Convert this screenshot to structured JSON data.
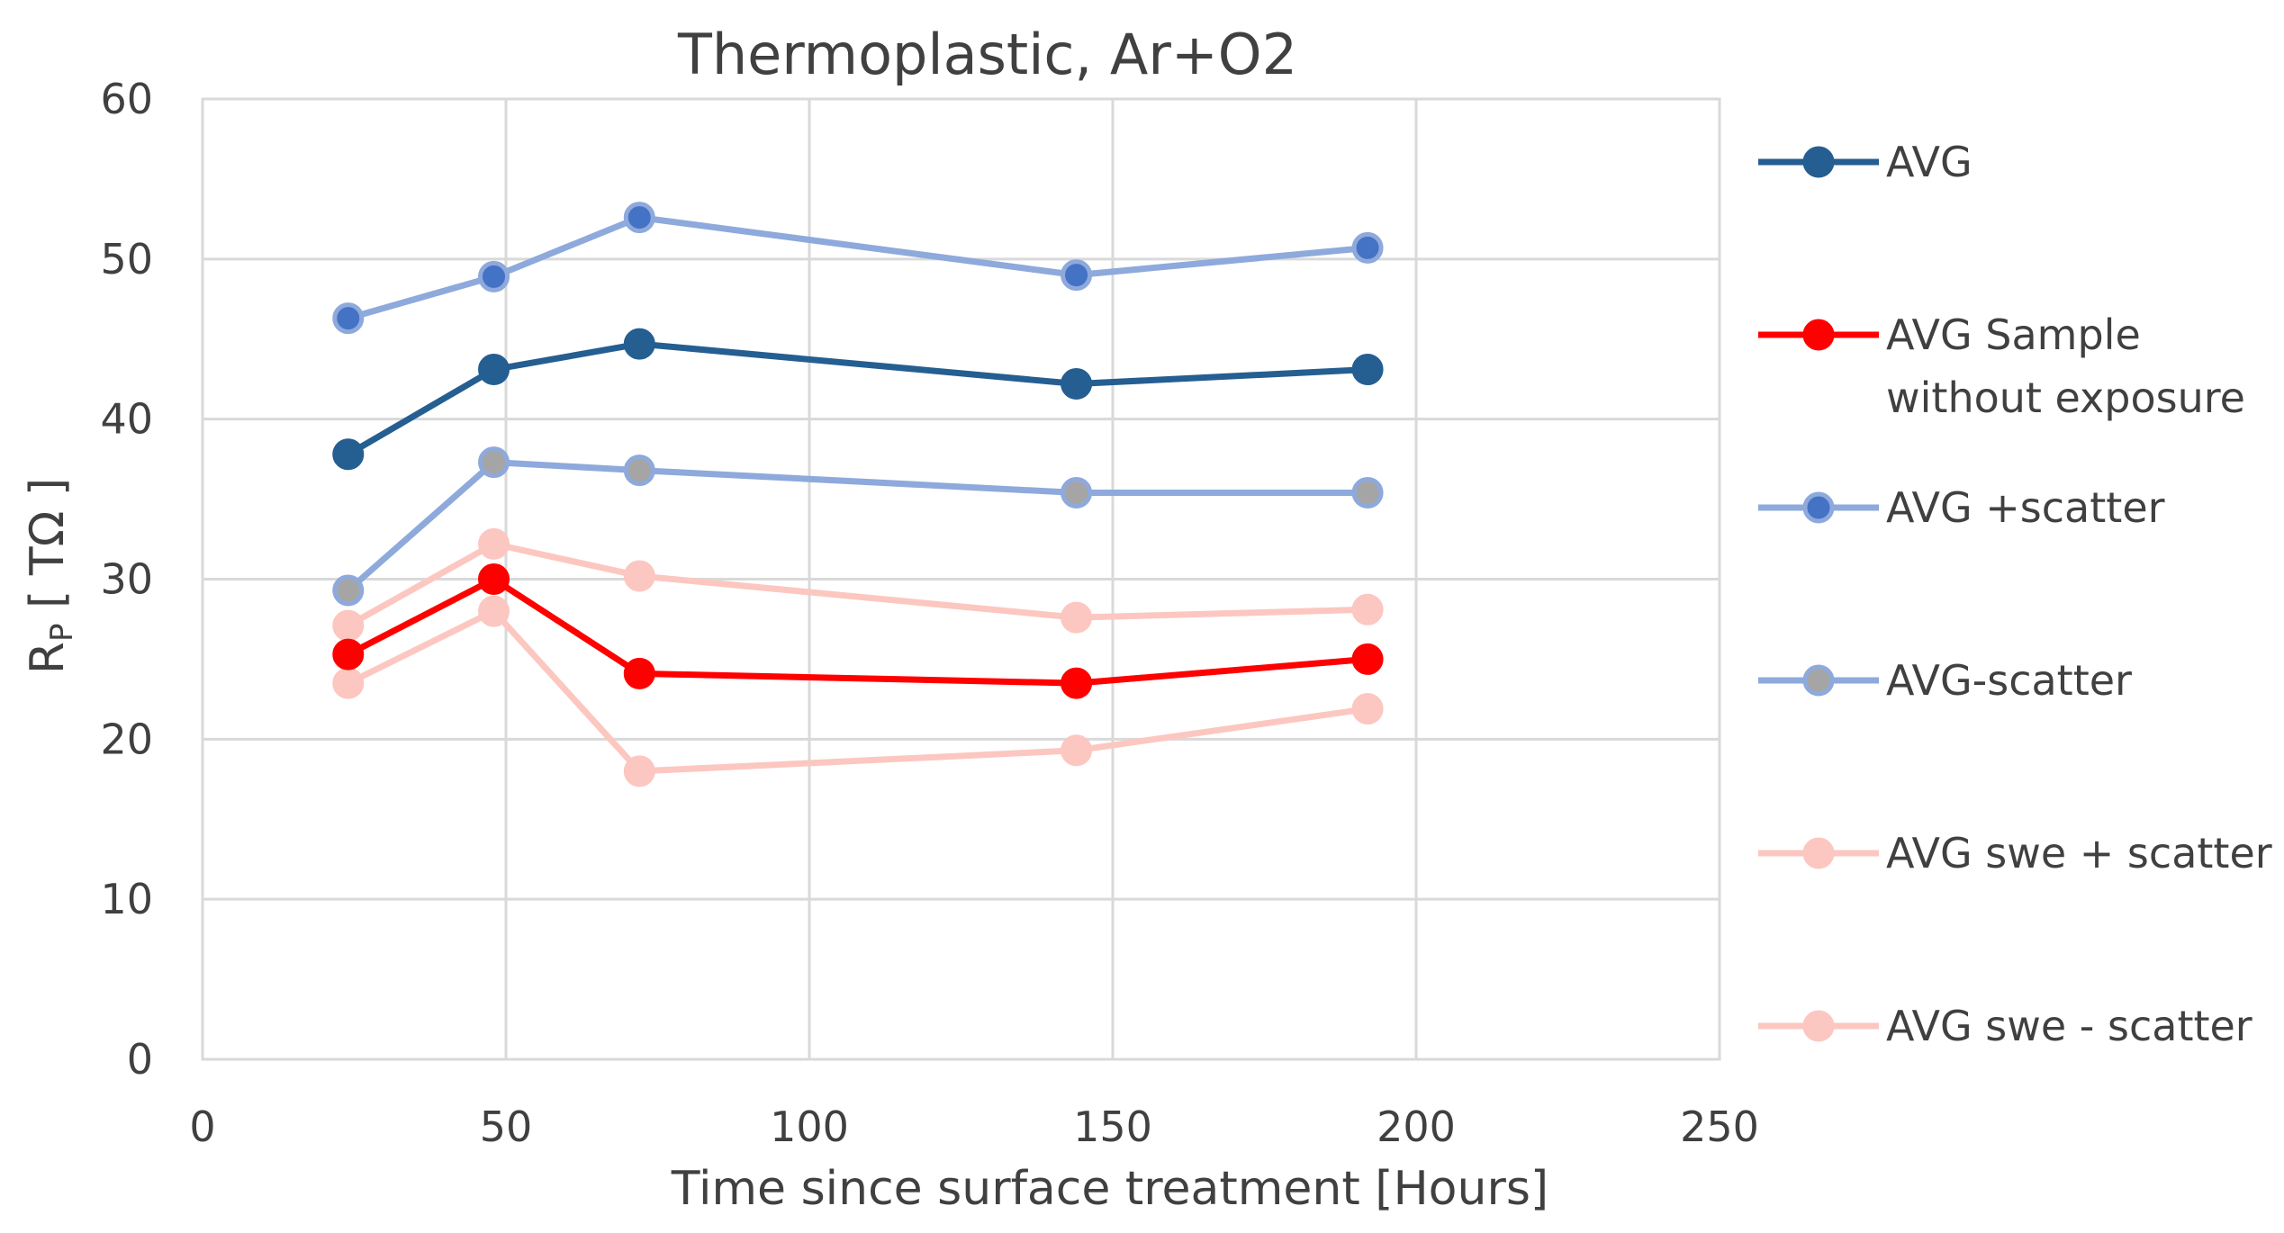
{
  "chart_data": {
    "type": "line",
    "title": "Thermoplastic, Ar+O2",
    "xlabel": "Time since surface treatment [Hours]",
    "ylabel_main": "R",
    "ylabel_sub": "P",
    "ylabel_unit": " [ TΩ ]",
    "xlim": [
      0,
      250
    ],
    "ylim": [
      0,
      60
    ],
    "xticks": [
      0,
      50,
      100,
      150,
      200,
      250
    ],
    "yticks": [
      0,
      10,
      20,
      30,
      40,
      50,
      60
    ],
    "x": [
      24,
      48,
      72,
      144,
      192
    ],
    "grid": true,
    "legend_position": "right",
    "series": [
      {
        "name": "AVG swe - scatter",
        "values": [
          23.5,
          28.0,
          18.0,
          19.3,
          21.9
        ],
        "line_color": "#FCC7C0",
        "marker_fill": "#FCC7C0",
        "marker_edge": "#FCC7C0"
      },
      {
        "name": "AVG swe + scatter",
        "values": [
          27.1,
          32.2,
          30.2,
          27.6,
          28.1
        ],
        "line_color": "#FCC7C0",
        "marker_fill": "#FCC7C0",
        "marker_edge": "#FCC7C0"
      },
      {
        "name": "AVG-scatter",
        "values": [
          29.3,
          37.3,
          36.8,
          35.4,
          35.4
        ],
        "line_color": "#8EA9DB",
        "marker_fill": "#A5A5A5",
        "marker_edge": "#8EA9DB"
      },
      {
        "name": "AVG +scatter",
        "values": [
          46.3,
          48.9,
          52.6,
          49.0,
          50.7
        ],
        "line_color": "#8EA9DB",
        "marker_fill": "#4472C4",
        "marker_edge": "#8EA9DB"
      },
      {
        "name": "AVG Sample without exposure",
        "values": [
          25.3,
          30.0,
          24.1,
          23.5,
          25.0
        ],
        "line_color": "#FF0000",
        "marker_fill": "#FF0000",
        "marker_edge": "#FF0000"
      },
      {
        "name": "AVG",
        "values": [
          37.8,
          43.1,
          44.7,
          42.2,
          43.1
        ],
        "line_color": "#255E91",
        "marker_fill": "#255E91",
        "marker_edge": "#255E91"
      }
    ],
    "legend": [
      {
        "lines": [
          "AVG"
        ],
        "line_color": "#255E91",
        "marker_fill": "#255E91",
        "marker_edge": "#255E91"
      },
      {
        "lines": [
          "AVG Sample",
          "without exposure"
        ],
        "line_color": "#FF0000",
        "marker_fill": "#FF0000",
        "marker_edge": "#FF0000"
      },
      {
        "lines": [
          "AVG +scatter"
        ],
        "line_color": "#8EA9DB",
        "marker_fill": "#4472C4",
        "marker_edge": "#8EA9DB"
      },
      {
        "lines": [
          "AVG-scatter"
        ],
        "line_color": "#8EA9DB",
        "marker_fill": "#A5A5A5",
        "marker_edge": "#8EA9DB"
      },
      {
        "lines": [
          "AVG swe + scatter"
        ],
        "line_color": "#FCC7C0",
        "marker_fill": "#FCC7C0",
        "marker_edge": "#FCC7C0"
      },
      {
        "lines": [
          "AVG swe - scatter"
        ],
        "line_color": "#FCC7C0",
        "marker_fill": "#FCC7C0",
        "marker_edge": "#FCC7C0"
      }
    ]
  }
}
